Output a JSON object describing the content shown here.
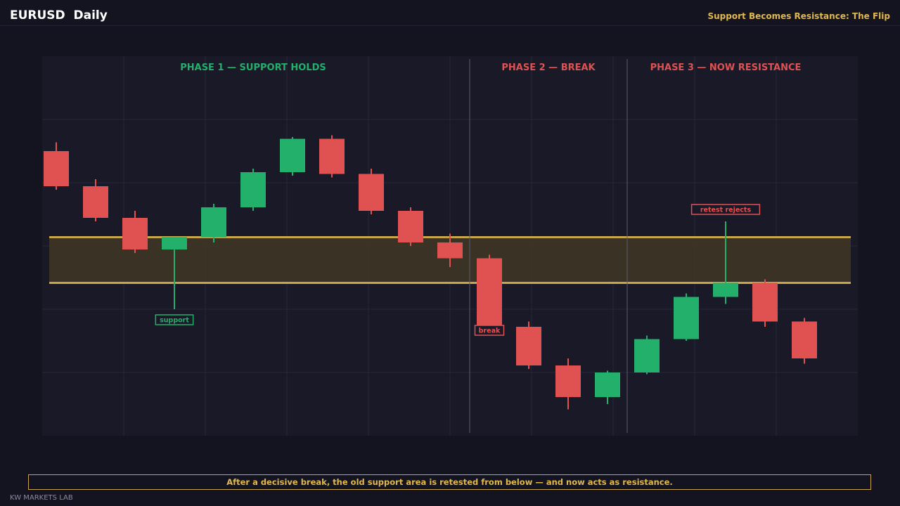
{
  "header": {
    "title": "EURUSD  Daily",
    "subtitle": "Support Becomes Resistance: The Flip"
  },
  "chart_data": {
    "type": "candlestick",
    "ylim": [
      0,
      100
    ],
    "grid": true,
    "colors": {
      "up": "#22b06b",
      "down": "#e05252",
      "zone_line": "#c9a54a",
      "zone_fill": "#3f3526",
      "panel": "#191928",
      "grid": "#262638",
      "divider": "#5a5a70"
    },
    "candles": [
      {
        "o": 79,
        "h": 81.5,
        "l": 68,
        "c": 69,
        "dir": "down"
      },
      {
        "o": 69,
        "h": 71,
        "l": 59,
        "c": 60,
        "dir": "down"
      },
      {
        "o": 60,
        "h": 62,
        "l": 50,
        "c": 51,
        "dir": "down"
      },
      {
        "o": 51,
        "h": 54.5,
        "l": 34,
        "c": 54.5,
        "dir": "up"
      },
      {
        "o": 54.5,
        "h": 64,
        "l": 53,
        "c": 63,
        "dir": "up"
      },
      {
        "o": 63,
        "h": 74,
        "l": 62,
        "c": 73,
        "dir": "up"
      },
      {
        "o": 73,
        "h": 83,
        "l": 72,
        "c": 82.5,
        "dir": "up"
      },
      {
        "o": 82.5,
        "h": 83.5,
        "l": 71.5,
        "c": 72.5,
        "dir": "down"
      },
      {
        "o": 72.5,
        "h": 74,
        "l": 61,
        "c": 62,
        "dir": "down"
      },
      {
        "o": 62,
        "h": 63,
        "l": 52,
        "c": 53,
        "dir": "down"
      },
      {
        "o": 53,
        "h": 55.5,
        "l": 46,
        "c": 48.5,
        "dir": "down"
      },
      {
        "o": 48.5,
        "h": 49.5,
        "l": 28,
        "c": 29,
        "dir": "down"
      },
      {
        "o": 29,
        "h": 30.5,
        "l": 17,
        "c": 18,
        "dir": "down"
      },
      {
        "o": 18,
        "h": 20,
        "l": 5.5,
        "c": 9,
        "dir": "down"
      },
      {
        "o": 9,
        "h": 16.5,
        "l": 7,
        "c": 16,
        "dir": "up"
      },
      {
        "o": 16,
        "h": 26.5,
        "l": 15.5,
        "c": 25.5,
        "dir": "up"
      },
      {
        "o": 25.5,
        "h": 38.5,
        "l": 25,
        "c": 37.5,
        "dir": "up"
      },
      {
        "o": 37.5,
        "h": 59,
        "l": 35.5,
        "c": 41.5,
        "dir": "up"
      },
      {
        "o": 41.5,
        "h": 42.5,
        "l": 29,
        "c": 30.5,
        "dir": "down"
      },
      {
        "o": 30.5,
        "h": 31.5,
        "l": 18.5,
        "c": 20,
        "dir": "down"
      }
    ],
    "zone": {
      "low": 41.5,
      "high": 54.5
    },
    "phases": [
      {
        "label": "PHASE 1 — SUPPORT HOLDS",
        "color": "#22b06b",
        "start": 0,
        "end": 10
      },
      {
        "label": "PHASE 2 — BREAK",
        "color": "#e05252",
        "start": 11,
        "end": 14
      },
      {
        "label": "PHASE 3 — NOW RESISTANCE",
        "color": "#e05252",
        "start": 15,
        "end": 19
      }
    ],
    "annotations": [
      {
        "label": "support",
        "candle": 3,
        "color": "#22b06b"
      },
      {
        "label": "break",
        "candle": 11,
        "color": "#e05252"
      },
      {
        "label": "retest rejects",
        "candle": 17,
        "color": "#e05252"
      }
    ]
  },
  "caption": "After a decisive break, the old support area is retested from below — and now acts as resistance.",
  "footer": "KW MARKETS LAB"
}
